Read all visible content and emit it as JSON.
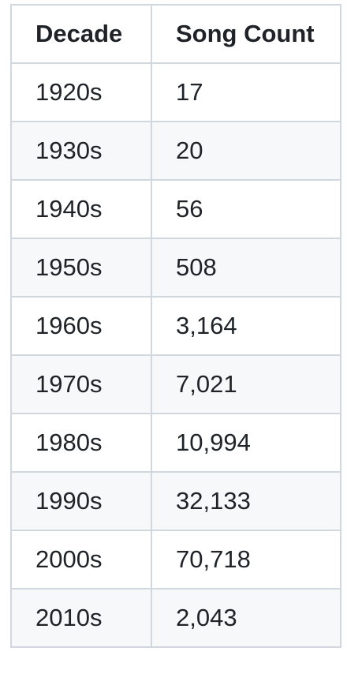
{
  "table": {
    "headers": [
      "Decade",
      "Song Count"
    ],
    "rows": [
      [
        "1920s",
        "17"
      ],
      [
        "1930s",
        "20"
      ],
      [
        "1940s",
        "56"
      ],
      [
        "1950s",
        "508"
      ],
      [
        "1960s",
        "3,164"
      ],
      [
        "1970s",
        "7,021"
      ],
      [
        "1980s",
        "10,994"
      ],
      [
        "1990s",
        "32,133"
      ],
      [
        "2000s",
        "70,718"
      ],
      [
        "2010s",
        "2,043"
      ]
    ]
  }
}
